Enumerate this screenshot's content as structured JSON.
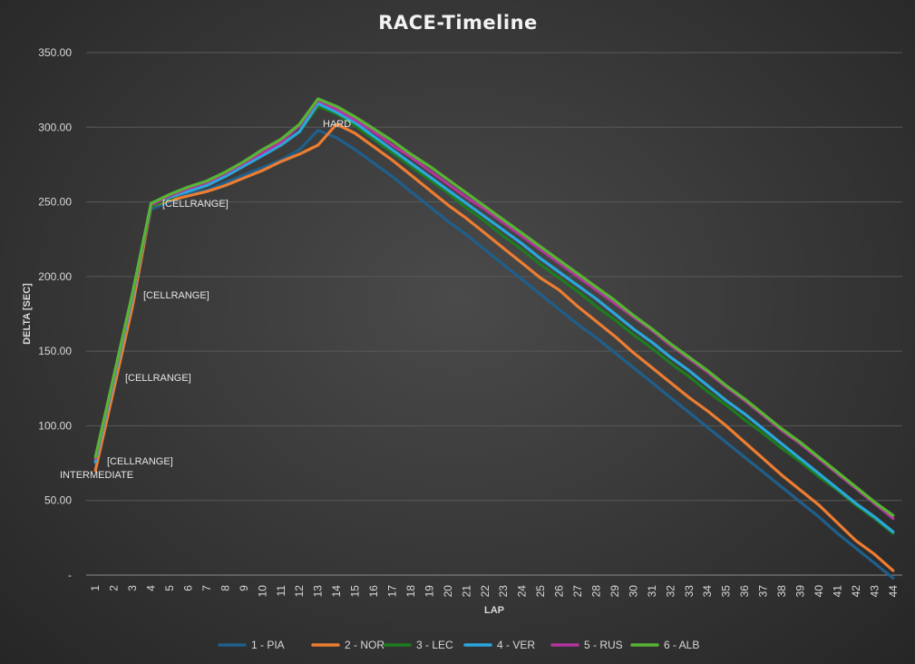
{
  "chart_data": {
    "type": "line",
    "title": "RACE-Timeline",
    "xlabel": "LAP",
    "ylabel": "DELTA [SEC]",
    "ylim": [
      0,
      350
    ],
    "y_ticks": [
      "-",
      "50.00",
      "100.00",
      "150.00",
      "200.00",
      "250.00",
      "300.00",
      "350.00"
    ],
    "grid": "horizontal",
    "legend_position": "bottom",
    "x": [
      1,
      2,
      3,
      4,
      5,
      6,
      7,
      8,
      9,
      10,
      11,
      12,
      13,
      14,
      15,
      16,
      17,
      18,
      19,
      20,
      21,
      22,
      23,
      24,
      25,
      26,
      27,
      28,
      29,
      30,
      31,
      32,
      33,
      34,
      35,
      36,
      37,
      38,
      39,
      40,
      41,
      42,
      43,
      44
    ],
    "series": [
      {
        "name": "1 - PIA",
        "color": "#1f5f8b",
        "values": [
          75,
          130,
          185,
          245,
          250,
          255,
          258,
          263,
          268,
          273,
          278,
          285,
          298,
          293,
          285,
          276,
          267,
          257,
          247,
          237,
          228,
          218,
          208,
          198,
          188,
          178,
          168,
          159,
          149,
          139,
          129,
          119,
          109,
          99,
          89,
          79,
          69,
          59,
          49,
          39,
          28,
          18,
          8,
          -2
        ]
      },
      {
        "name": "2 - NOR",
        "color": "#ed7d31",
        "values": [
          70,
          125,
          180,
          247,
          251,
          254,
          257,
          261,
          266,
          271,
          277,
          282,
          288,
          302,
          296,
          287,
          278,
          268,
          258,
          248,
          239,
          229,
          219,
          209,
          199,
          191,
          180,
          170,
          160,
          149,
          139,
          129,
          119,
          110,
          100,
          89,
          78,
          67,
          57,
          47,
          35,
          23,
          14,
          3
        ]
      },
      {
        "name": "3 - LEC",
        "color": "#1e7b1e",
        "values": [
          77,
          132,
          187,
          247,
          252,
          258,
          262,
          268,
          275,
          282,
          288,
          297,
          314,
          309,
          301,
          292,
          283,
          274,
          265,
          256,
          246,
          237,
          227,
          218,
          208,
          199,
          190,
          180,
          171,
          161,
          152,
          142,
          133,
          123,
          114,
          104,
          95,
          85,
          76,
          66,
          57,
          47,
          38,
          28
        ]
      },
      {
        "name": "4 - VER",
        "color": "#2aa7dc",
        "values": [
          76,
          131,
          186,
          249,
          253,
          257,
          261,
          267,
          274,
          281,
          288,
          297,
          316,
          310,
          303,
          294,
          285,
          276,
          267,
          258,
          249,
          240,
          231,
          222,
          212,
          203,
          194,
          185,
          175,
          165,
          156,
          146,
          137,
          127,
          117,
          108,
          98,
          88,
          78,
          68,
          58,
          48,
          39,
          29
        ]
      },
      {
        "name": "5 - RUS",
        "color": "#b4349e",
        "values": [
          78,
          133,
          188,
          248,
          254,
          259,
          263,
          269,
          276,
          283,
          290,
          301,
          318,
          312,
          305,
          297,
          288,
          280,
          271,
          262,
          253,
          245,
          236,
          227,
          218,
          209,
          200,
          191,
          182,
          173,
          164,
          154,
          145,
          136,
          126,
          117,
          107,
          97,
          88,
          78,
          68,
          58,
          48,
          38
        ]
      },
      {
        "name": "6 - ALB",
        "color": "#57b534",
        "values": [
          79,
          134,
          189,
          249,
          255,
          260,
          264,
          270,
          277,
          285,
          292,
          302,
          319,
          314,
          307,
          299,
          291,
          282,
          274,
          265,
          256,
          247,
          238,
          229,
          220,
          211,
          202,
          193,
          184,
          174,
          165,
          155,
          146,
          137,
          127,
          118,
          108,
          98,
          89,
          79,
          69,
          59,
          49,
          40
        ]
      }
    ],
    "annotations": [
      "INTERMEDIATE",
      "[CELLRANGE]",
      "[CELLRANGE]",
      "[CELLRANGE]",
      "[CELLRANGE]",
      "HARD"
    ]
  }
}
